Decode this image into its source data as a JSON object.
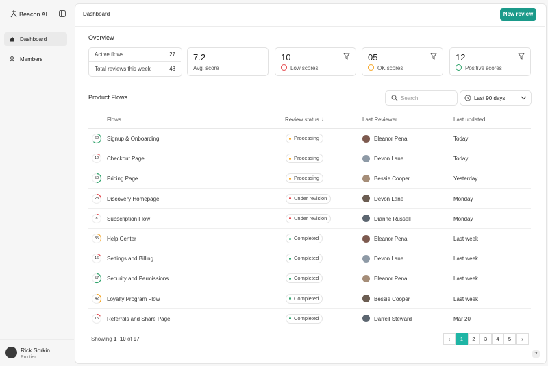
{
  "sidebar": {
    "brand": "Beacon AI",
    "nav": [
      {
        "label": "Dashboard",
        "active": true
      },
      {
        "label": "Members",
        "active": false
      }
    ],
    "user": {
      "name": "Rick Sorkin",
      "plan": "Pro tier"
    }
  },
  "header": {
    "title": "Dashboard",
    "button": "New review"
  },
  "overview": {
    "title": "Overview",
    "summary": [
      {
        "label": "Active flows",
        "value": "27"
      },
      {
        "label": "Total reviews this week",
        "value": "48"
      }
    ],
    "cards": [
      {
        "value": "7.2",
        "label": "Avg. score",
        "filter": false
      },
      {
        "value": "10",
        "label": "Low scores",
        "color": "#e5484d",
        "filter": true
      },
      {
        "value": "05",
        "label": "OK scores",
        "color": "#f5a524",
        "filter": true
      },
      {
        "value": "12",
        "label": "Positive scores",
        "color": "#30a46c",
        "filter": true
      }
    ]
  },
  "table": {
    "title": "Product Flows",
    "search": "Search",
    "range": "Last 90 days",
    "columns": [
      "Flows",
      "Review status",
      "Last Reviewer",
      "Last updated"
    ],
    "rows": [
      {
        "score": 62,
        "ring": "#30a46c",
        "flow": "Signup & Onboarding",
        "status": "Processing",
        "dot": "#f5a524",
        "reviewer": "Eleanor Pena",
        "updated": "Today"
      },
      {
        "score": 12,
        "ring": "#e5484d",
        "flow": "Checkout Page",
        "status": "Processing",
        "dot": "#f5a524",
        "reviewer": "Devon Lane",
        "updated": "Today"
      },
      {
        "score": 50,
        "ring": "#30a46c",
        "flow": "Pricing Page",
        "status": "Processing",
        "dot": "#f5a524",
        "reviewer": "Bessie Cooper",
        "updated": "Yesterday"
      },
      {
        "score": 23,
        "ring": "#e5484d",
        "flow": "Discovery Homepage",
        "status": "Under revision",
        "dot": "#e5484d",
        "reviewer": "Devon Lane",
        "updated": "Monday"
      },
      {
        "score": 8,
        "ring": "#e5484d",
        "flow": "Subscription Flow",
        "status": "Under revision",
        "dot": "#e5484d",
        "reviewer": "Dianne Russell",
        "updated": "Monday"
      },
      {
        "score": 35,
        "ring": "#f5a524",
        "flow": "Help Center",
        "status": "Completed",
        "dot": "#30a46c",
        "reviewer": "Eleanor Pena",
        "updated": "Last week"
      },
      {
        "score": 16,
        "ring": "#e5484d",
        "flow": "Settings and Billing",
        "status": "Completed",
        "dot": "#30a46c",
        "reviewer": "Devon Lane",
        "updated": "Last week"
      },
      {
        "score": 57,
        "ring": "#30a46c",
        "flow": "Security and Permissions",
        "status": "Completed",
        "dot": "#30a46c",
        "reviewer": "Eleanor Pena",
        "updated": "Last week"
      },
      {
        "score": 42,
        "ring": "#f5a524",
        "flow": "Loyalty Program Flow",
        "status": "Completed",
        "dot": "#30a46c",
        "reviewer": "Bessie Cooper",
        "updated": "Last week"
      },
      {
        "score": 15,
        "ring": "#e5484d",
        "flow": "Referrals and Share Page",
        "status": "Completed",
        "dot": "#30a46c",
        "reviewer": "Darrell Steward",
        "updated": "Mar 20"
      }
    ]
  },
  "footer": {
    "showing": "Showing",
    "range": "1–10",
    "of": "of",
    "total": "97",
    "pages": [
      1,
      2,
      3,
      4,
      5
    ],
    "current": 1
  }
}
